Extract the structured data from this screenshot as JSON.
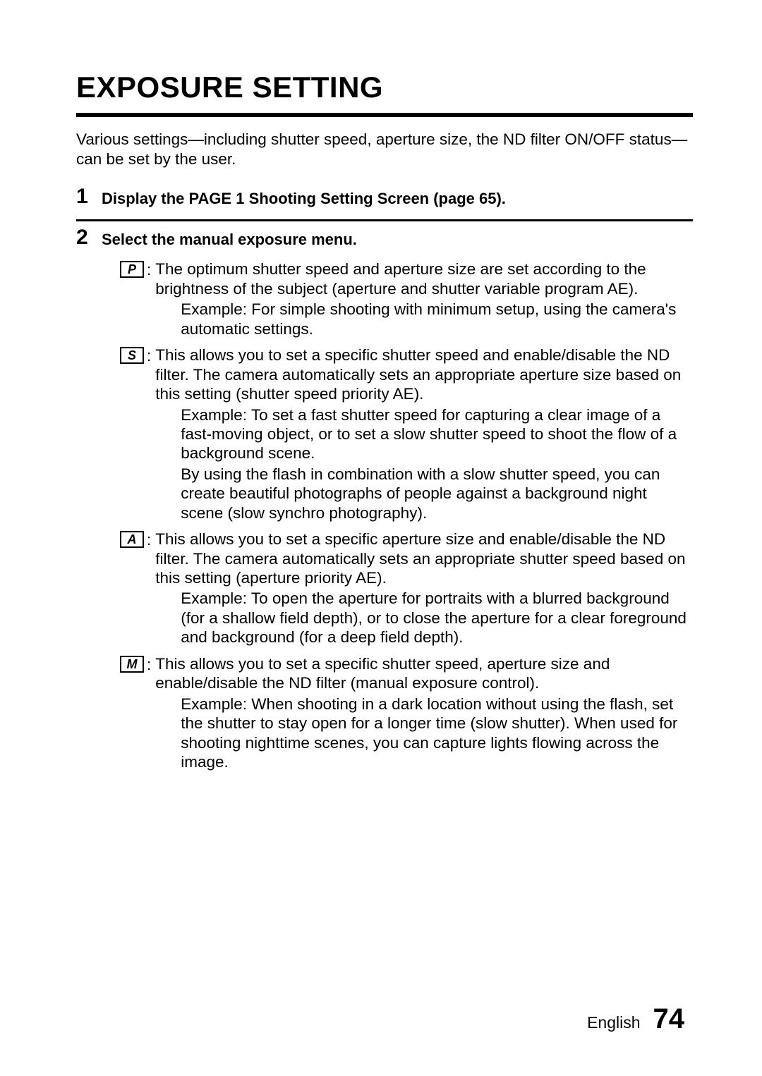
{
  "title": "EXPOSURE SETTING",
  "intro": "Various settings—including shutter speed, aperture size, the ND filter ON/OFF status—can be set by the user.",
  "steps": {
    "s1": {
      "num": "1",
      "title": "Display the PAGE 1 Shooting Setting Screen (page 65)."
    },
    "s2": {
      "num": "2",
      "title": "Select the manual exposure menu."
    }
  },
  "modes": {
    "P": {
      "label": "P",
      "desc": "The optimum shutter speed and aperture size are set according to the brightness of the subject (aperture and shutter variable program AE).",
      "example": "Example: For simple shooting with minimum setup, using the camera's automatic settings."
    },
    "S": {
      "label": "S",
      "desc": "This allows you to set a specific shutter speed and enable/disable the ND filter. The camera automatically sets an appropriate aperture size based on this setting (shutter speed priority AE).",
      "example": "Example: To set a fast shutter speed for capturing a clear image of a fast-moving object, or to set a slow shutter speed to shoot the flow of a background scene.",
      "example2": "By using the flash in combination with a slow shutter speed, you can create beautiful photographs of people against a background night scene (slow synchro photography)."
    },
    "A": {
      "label": "A",
      "desc": "This allows you to set a specific aperture size and enable/disable the ND filter. The camera automatically sets an appropriate shutter speed based on this setting (aperture priority AE).",
      "example": "Example: To open the aperture for portraits with a blurred background (for a shallow field depth), or to close the aperture for a clear foreground and background (for a deep field depth)."
    },
    "M": {
      "label": "M",
      "desc": "This allows you to set a specific shutter speed, aperture size and enable/disable the ND filter (manual exposure control).",
      "example": "Example: When shooting in a dark location without using the flash, set the shutter to stay open for a longer time (slow shutter). When used for shooting nighttime scenes, you can capture lights flowing across the image."
    }
  },
  "footer": {
    "lang": "English",
    "page": "74"
  },
  "colors": {
    "text": "#000000",
    "bg": "#ffffff",
    "rule": "#000000"
  },
  "typography": {
    "title_fontsize": 42,
    "body_fontsize": 22.5,
    "stepnum_fontsize": 30,
    "footer_page_fontsize": 40
  }
}
